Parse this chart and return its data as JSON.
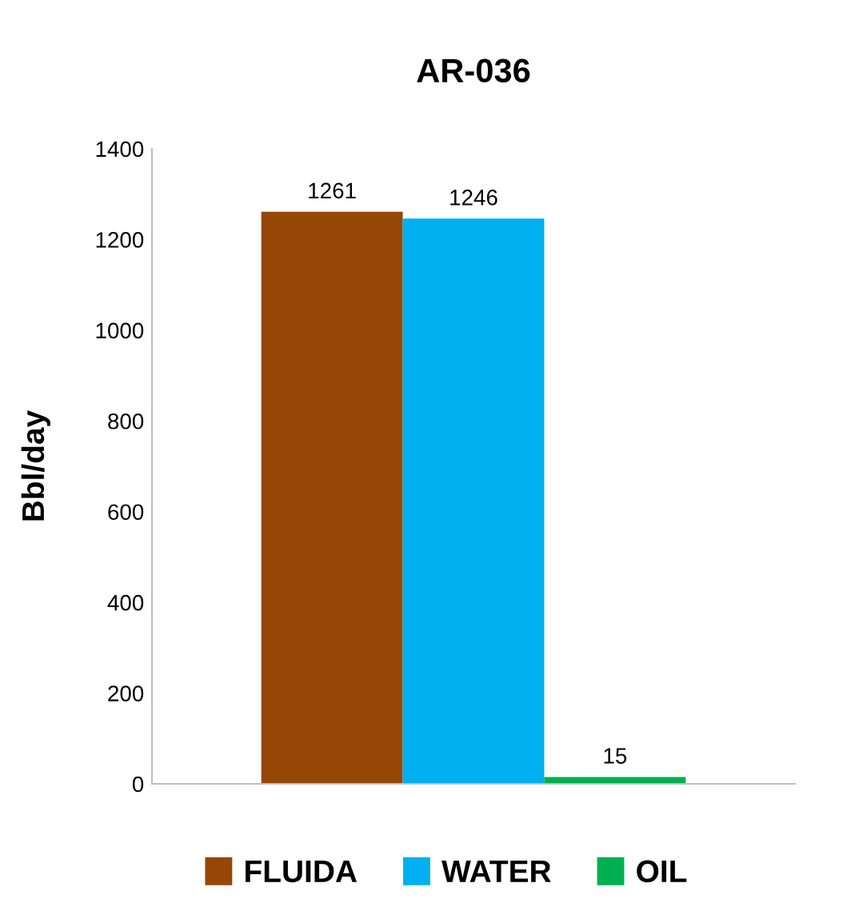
{
  "chart_data": {
    "type": "bar",
    "title": "AR-036",
    "ylabel": "Bbl/day",
    "categories": [
      null
    ],
    "series": [
      {
        "name": "FLUIDA",
        "color": "#964706",
        "values": [
          1261
        ]
      },
      {
        "name": "WATER",
        "color": "#00b0f0",
        "values": [
          1246
        ]
      },
      {
        "name": "OIL",
        "color": "#00b050",
        "values": [
          15
        ]
      }
    ],
    "ylim": [
      0,
      1400
    ],
    "yticks": [
      0,
      200,
      400,
      600,
      800,
      1000,
      1200,
      1400
    ],
    "data_labels": true,
    "grid": false,
    "legend": "bottom"
  }
}
